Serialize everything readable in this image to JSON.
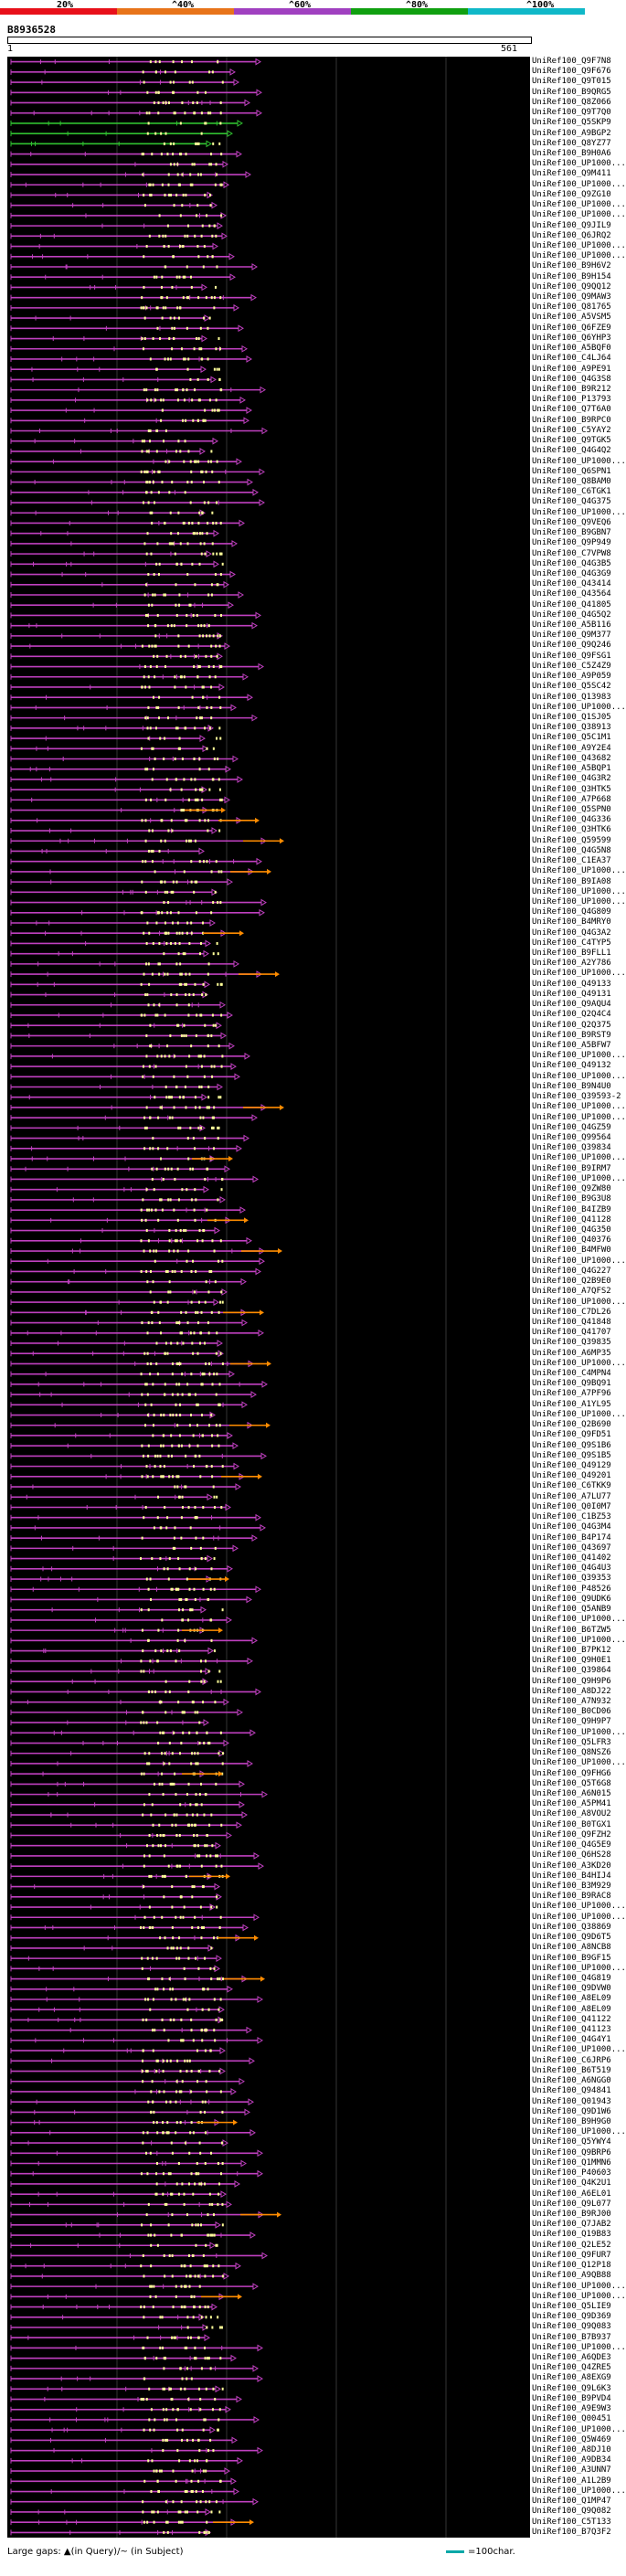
{
  "legend": {
    "labels": [
      "20%",
      "^40%",
      "^60%",
      "^80%",
      "^100%"
    ],
    "colors": [
      "#e8101a",
      "#e8741a",
      "#a040c0",
      "#10a010",
      "#10b8c8"
    ]
  },
  "query": {
    "id": "B8936528",
    "start": "1",
    "end": "561"
  },
  "colors": {
    "hit": "#c040c0",
    "gap": "#ff8c00",
    "match": "#30c030",
    "dots": "#ffff99"
  },
  "hits": [
    "UniRef100_Q9F7N8",
    "UniRef100_Q9F676",
    "UniRef100_Q9T015",
    "UniRef100_B9QRG5",
    "UniRef100_Q8Z066",
    "UniRef100_Q9T7Q0",
    "UniRef100_Q5SKP9",
    "UniRef100_A9BGP2",
    "UniRef100_Q8YZ77",
    "UniRef100_B9H0A6",
    "UniRef100_UP1000...",
    "UniRef100_Q9M411",
    "UniRef100_UP1000...",
    "UniRef100_Q9ZG10",
    "UniRef100_UP1000...",
    "UniRef100_UP1000...",
    "UniRef100_Q9JIL9",
    "UniRef100_Q6JRQ2",
    "UniRef100_UP1000...",
    "UniRef100_UP1000...",
    "UniRef100_B9H6V2",
    "UniRef100_B9H154",
    "UniRef100_Q9QQ12",
    "UniRef100_Q9MAW3",
    "UniRef100_Q81765",
    "UniRef100_A5VSM5",
    "UniRef100_Q6FZE9",
    "UniRef100_Q6YHP3",
    "UniRef100_A5BQF0",
    "UniRef100_C4LJ64",
    "UniRef100_A9PE91",
    "UniRef100_Q4G3S8",
    "UniRef100_B9R212",
    "UniRef100_P13793",
    "UniRef100_Q7T6A0",
    "UniRef100_B9RPC0",
    "UniRef100_C5YAY2",
    "UniRef100_Q9TGK5",
    "UniRef100_Q4G4Q2",
    "UniRef100_UP1000...",
    "UniRef100_Q6SPN1",
    "UniRef100_Q8BAM0",
    "UniRef100_C6TGK1",
    "UniRef100_Q4G375",
    "UniRef100_UP1000...",
    "UniRef100_Q9VEQ6",
    "UniRef100_B9GBN7",
    "UniRef100_Q9P949",
    "UniRef100_C7VPW8",
    "UniRef100_Q4G3B5",
    "UniRef100_Q4G3G9",
    "UniRef100_Q43414",
    "UniRef100_Q43564",
    "UniRef100_Q41805",
    "UniRef100_Q4G5Q2",
    "UniRef100_A5B116",
    "UniRef100_Q9M377",
    "UniRef100_Q9Q246",
    "UniRef100_Q9FSG1",
    "UniRef100_C5Z4Z9",
    "UniRef100_A9P059",
    "UniRef100_Q5SC42",
    "UniRef100_Q13983",
    "UniRef100_UP1000...",
    "UniRef100_Q1SJ05",
    "UniRef100_Q38913",
    "UniRef100_Q5C1M1",
    "UniRef100_A9Y2E4",
    "UniRef100_Q43682",
    "UniRef100_A5BQP1",
    "UniRef100_Q4G3R2",
    "UniRef100_Q3HTK5",
    "UniRef100_A7P668",
    "UniRef100_Q5SPN0",
    "UniRef100_Q4G336",
    "UniRef100_Q3HTK6",
    "UniRef100_Q59599",
    "UniRef100_Q4G5N8",
    "UniRef100_C1EA37",
    "UniRef100_UP1000...",
    "UniRef100_B9IA08",
    "UniRef100_UP1000...",
    "UniRef100_UP1000...",
    "UniRef100_Q4G809",
    "UniRef100_B4MRY0",
    "UniRef100_Q4G3A2",
    "UniRef100_C4TYP5",
    "UniRef100_B9FLL1",
    "UniRef100_A2Y786",
    "UniRef100_UP1000...",
    "UniRef100_Q49133",
    "UniRef100_Q49131",
    "UniRef100_Q9AQU4",
    "UniRef100_Q2Q4C4",
    "UniRef100_Q2Q375",
    "UniRef100_B9RST9",
    "UniRef100_A5BFW7",
    "UniRef100_UP1000...",
    "UniRef100_Q49132",
    "UniRef100_UP1000...",
    "UniRef100_B9N4U0",
    "UniRef100_Q39593-2",
    "UniRef100_UP1000...",
    "UniRef100_UP1000...",
    "UniRef100_Q4GZ59",
    "UniRef100_Q99564",
    "UniRef100_Q39834",
    "UniRef100_UP1000...",
    "UniRef100_B9IRM7",
    "UniRef100_UP1000...",
    "UniRef100_Q9ZW80",
    "UniRef100_B9G3U8",
    "UniRef100_B4IZB9",
    "UniRef100_Q41128",
    "UniRef100_Q4G350",
    "UniRef100_Q40376",
    "UniRef100_B4MFW0",
    "UniRef100_UP1000...",
    "UniRef100_Q4G227",
    "UniRef100_Q2B9E0",
    "UniRef100_A7QFS2",
    "UniRef100_UP1000...",
    "UniRef100_C7DL26",
    "UniRef100_Q41848",
    "UniRef100_Q41707",
    "UniRef100_Q39835",
    "UniRef100_A6MP35",
    "UniRef100_UP1000...",
    "UniRef100_C4MPN4",
    "UniRef100_Q9BQ91",
    "UniRef100_A7PF96",
    "UniRef100_A1YL95",
    "UniRef100_UP1000...",
    "UniRef100_Q2B690",
    "UniRef100_Q9FD51",
    "UniRef100_Q9S1B6",
    "UniRef100_Q9S1B5",
    "UniRef100_Q49129",
    "UniRef100_Q49201",
    "UniRef100_C6TKK9",
    "UniRef100_A7LU77",
    "UniRef100_Q0I0M7",
    "UniRef100_C1BZ53",
    "UniRef100_Q4G3M4",
    "UniRef100_B4P174",
    "UniRef100_Q43697",
    "UniRef100_Q41402",
    "UniRef100_Q4G4U3",
    "UniRef100_Q39353",
    "UniRef100_P48526",
    "UniRef100_Q9UDK6",
    "UniRef100_Q5ANB9",
    "UniRef100_UP1000...",
    "UniRef100_B6TZW5",
    "UniRef100_UP1000...",
    "UniRef100_B7PK12",
    "UniRef100_Q9H0E1",
    "UniRef100_Q39864",
    "UniRef100_Q9H9P6",
    "UniRef100_A8DJ22",
    "UniRef100_A7N932",
    "UniRef100_B0CD06",
    "UniRef100_Q9H9P7",
    "UniRef100_UP1000...",
    "UniRef100_Q5LFR3",
    "UniRef100_Q8NSZ6",
    "UniRef100_UP1000...",
    "UniRef100_Q9FHG6",
    "UniRef100_Q5T6G8",
    "UniRef100_A6N015",
    "UniRef100_A5PM41",
    "UniRef100_A8VOU2",
    "UniRef100_B0TGX1",
    "UniRef100_Q9FZH2",
    "UniRef100_Q4G5E9",
    "UniRef100_Q6HS28",
    "UniRef100_A3KD20",
    "UniRef100_B4HIJ4",
    "UniRef100_B3M929",
    "UniRef100_B9RAC8",
    "UniRef100_UP1000...",
    "UniRef100_UP1000...",
    "UniRef100_Q38869",
    "UniRef100_Q9D6T5",
    "UniRef100_A8NCB8",
    "UniRef100_B9GF15",
    "UniRef100_UP1000...",
    "UniRef100_Q4G819",
    "UniRef100_Q9DVW0",
    "UniRef100_A8EL09",
    "UniRef100_A8EL09",
    "UniRef100_Q41122",
    "UniRef100_Q41123",
    "UniRef100_Q4G4Y1",
    "UniRef100_UP1000...",
    "UniRef100_C6JRP6",
    "UniRef100_B6T519",
    "UniRef100_A6NGG0",
    "UniRef100_Q94841",
    "UniRef100_Q01943",
    "UniRef100_Q9D1W6",
    "UniRef100_B9H9G0",
    "UniRef100_UP1000...",
    "UniRef100_Q5YWY4",
    "UniRef100_Q9BRP6",
    "UniRef100_Q1MMN6",
    "UniRef100_P40603",
    "UniRef100_Q4K2U1",
    "UniRef100_A6EL01",
    "UniRef100_Q9L077",
    "UniRef100_B9RJ00",
    "UniRef100_Q7JAB2",
    "UniRef100_Q19B83",
    "UniRef100_Q2LE52",
    "UniRef100_Q9FUR7",
    "UniRef100_Q12P18",
    "UniRef100_A9QB88",
    "UniRef100_UP1000...",
    "UniRef100_UP1000...",
    "UniRef100_Q5LIE9",
    "UniRef100_Q9D369",
    "UniRef100_Q9Q083",
    "UniRef100_B7B937",
    "UniRef100_UP1000...",
    "UniRef100_A6QDE3",
    "UniRef100_Q4ZRE5",
    "UniRef100_A8EXG9",
    "UniRef100_Q9L6K3",
    "UniRef100_B9PVD4",
    "UniRef100_A9E9W3",
    "UniRef100_Q00451",
    "UniRef100_UP1000...",
    "UniRef100_Q5W469",
    "UniRef100_A8DJ10",
    "UniRef100_A9DB34",
    "UniRef100_A3UNN7",
    "UniRef100_A1L2B9",
    "UniRef100_UP1000...",
    "UniRef100_Q1MP47",
    "UniRef100_Q9Q082",
    "UniRef100_C5T133",
    "UniRef100_B7Q3F2"
  ],
  "footer": {
    "note": "Large gaps: ▲(in Query)/~ (in Subject)",
    "scale": "=100char."
  }
}
